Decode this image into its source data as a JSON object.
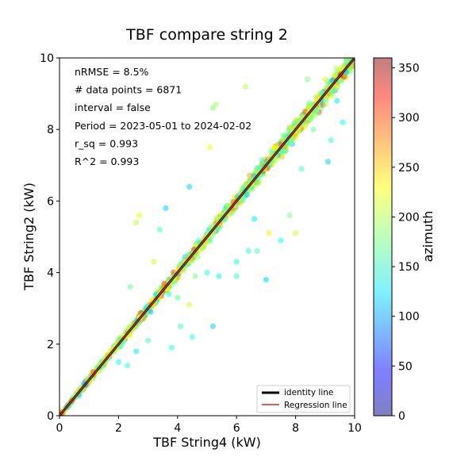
{
  "chart_data": {
    "type": "scatter",
    "title": "TBF compare string 2",
    "xlabel": "TBF String4 (kW)",
    "ylabel": "TBF String2 (kW)",
    "xlim": [
      0,
      10
    ],
    "ylim": [
      0,
      10
    ],
    "x_ticks": [
      "0",
      "2",
      "4",
      "6",
      "8",
      "10"
    ],
    "y_ticks": [
      "0",
      "2",
      "4",
      "6",
      "8",
      "10"
    ],
    "grid": false,
    "annotations": [
      "nRMSE = 8.5%",
      "# data points = 6871",
      "interval = false",
      "Period = 2023-05-01 to 2024-02-02",
      "r_sq = 0.993",
      "R^2 = 0.993"
    ],
    "legend": {
      "placement": "lower-right",
      "entries": [
        {
          "label": "identity line",
          "color": "#000000"
        },
        {
          "label": "Regression line",
          "color": "#d62728"
        }
      ]
    },
    "identity_line": {
      "x": [
        0,
        10
      ],
      "y": [
        0,
        10
      ]
    },
    "regression_line": {
      "x": [
        0,
        10
      ],
      "y": [
        0,
        10
      ]
    },
    "colorbar": {
      "label": "azimuth",
      "range": [
        0,
        360
      ],
      "ticks": [
        "0",
        "50",
        "100",
        "150",
        "200",
        "250",
        "300",
        "350"
      ],
      "colormap": "jet"
    },
    "outliers": [
      [
        6.3,
        9.2,
        200
      ],
      [
        8.4,
        9.4,
        180
      ],
      [
        9.0,
        9.4,
        230
      ],
      [
        9.2,
        7.7,
        150
      ],
      [
        5.2,
        8.6,
        180
      ],
      [
        5.3,
        8.7,
        200
      ],
      [
        5.1,
        7.5,
        220
      ],
      [
        8.2,
        6.9,
        160
      ],
      [
        9.1,
        7.1,
        120
      ],
      [
        9.4,
        8.8,
        130
      ],
      [
        9.6,
        8.2,
        140
      ],
      [
        8.6,
        8.0,
        170
      ],
      [
        4.4,
        6.4,
        120
      ],
      [
        3.6,
        5.8,
        120
      ],
      [
        2.7,
        5.6,
        220
      ],
      [
        2.6,
        5.4,
        200
      ],
      [
        3.4,
        5.2,
        160
      ],
      [
        6.6,
        5.5,
        130
      ],
      [
        7.1,
        5.1,
        230
      ],
      [
        7.8,
        5.6,
        180
      ],
      [
        7.5,
        4.9,
        140
      ],
      [
        8.0,
        5.1,
        210
      ],
      [
        6.4,
        4.6,
        150
      ],
      [
        6.7,
        4.6,
        160
      ],
      [
        5.0,
        4.0,
        150
      ],
      [
        5.4,
        3.9,
        140
      ],
      [
        4.6,
        3.9,
        180
      ],
      [
        5.2,
        2.5,
        120
      ],
      [
        6.0,
        3.9,
        150
      ],
      [
        7.0,
        3.8,
        120
      ],
      [
        6.0,
        4.3,
        140
      ],
      [
        3.8,
        1.9,
        150
      ],
      [
        4.1,
        2.5,
        160
      ],
      [
        4.5,
        2.2,
        150
      ],
      [
        4.4,
        3.1,
        210
      ],
      [
        3.7,
        3.4,
        140
      ],
      [
        2.3,
        1.4,
        150
      ],
      [
        2.0,
        1.5,
        140
      ],
      [
        2.6,
        1.8,
        130
      ],
      [
        3.0,
        2.1,
        160
      ],
      [
        4.0,
        3.3,
        170
      ],
      [
        3.2,
        4.3,
        210
      ],
      [
        2.4,
        3.6,
        170
      ],
      [
        3.1,
        2.9,
        120
      ]
    ]
  }
}
